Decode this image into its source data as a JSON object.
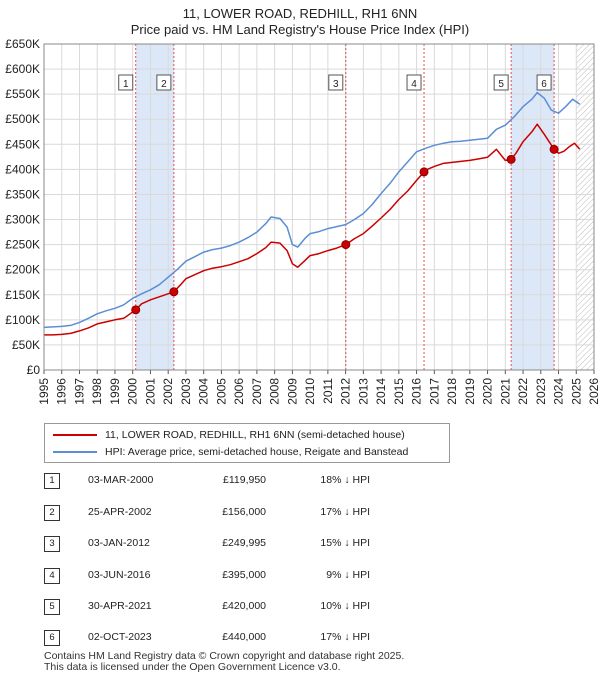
{
  "title_line1": "11, LOWER ROAD, REDHILL, RH1 6NN",
  "title_line2": "Price paid vs. HM Land Registry's House Price Index (HPI)",
  "colors": {
    "price_paid": "#cc0000",
    "hpi": "#5b8ed6",
    "band": "#dce8f8",
    "marker_border": "#555555",
    "grid": "#d9d9d9"
  },
  "legend": {
    "price_paid_label": "11, LOWER ROAD, REDHILL, RH1 6NN (semi-detached house)",
    "hpi_label": "HPI: Average price, semi-detached house, Reigate and Banstead"
  },
  "chart_data": {
    "type": "line",
    "xlim": [
      1995,
      2026
    ],
    "ylim": [
      0,
      650000
    ],
    "x_ticks": [
      "1995",
      "1996",
      "1997",
      "1998",
      "1999",
      "2000",
      "2001",
      "2002",
      "2003",
      "2004",
      "2005",
      "2006",
      "2007",
      "2008",
      "2009",
      "2010",
      "2011",
      "2012",
      "2013",
      "2014",
      "2015",
      "2016",
      "2017",
      "2018",
      "2019",
      "2020",
      "2021",
      "2022",
      "2023",
      "2024",
      "2025",
      "2026"
    ],
    "y_ticks": [
      {
        "value": 0,
        "label": "£0"
      },
      {
        "value": 50000,
        "label": "£50K"
      },
      {
        "value": 100000,
        "label": "£100K"
      },
      {
        "value": 150000,
        "label": "£150K"
      },
      {
        "value": 200000,
        "label": "£200K"
      },
      {
        "value": 250000,
        "label": "£250K"
      },
      {
        "value": 300000,
        "label": "£300K"
      },
      {
        "value": 350000,
        "label": "£350K"
      },
      {
        "value": 400000,
        "label": "£400K"
      },
      {
        "value": 450000,
        "label": "£450K"
      },
      {
        "value": 500000,
        "label": "£500K"
      },
      {
        "value": 550000,
        "label": "£550K"
      },
      {
        "value": 600000,
        "label": "£600K"
      },
      {
        "value": 650000,
        "label": "£650K"
      }
    ],
    "grid": true,
    "shaded_bands": [
      [
        2000.17,
        2002.32
      ],
      [
        2021.33,
        2023.75
      ]
    ],
    "projection_from": 2025.0,
    "series": [
      {
        "name": "11, LOWER ROAD, REDHILL, RH1 6NN (semi-detached house)",
        "color": "#cc0000",
        "x": [
          1995.0,
          1995.5,
          1996.0,
          1996.5,
          1997.0,
          1997.5,
          1998.0,
          1998.5,
          1999.0,
          1999.5,
          2000.17,
          2000.5,
          2001.0,
          2001.5,
          2002.32,
          2002.7,
          2003.0,
          2003.5,
          2004.0,
          2004.5,
          2005.0,
          2005.5,
          2006.0,
          2006.5,
          2007.0,
          2007.5,
          2007.8,
          2008.3,
          2008.7,
          2009.0,
          2009.3,
          2009.7,
          2010.0,
          2010.5,
          2011.0,
          2011.5,
          2012.01,
          2012.5,
          2013.0,
          2013.5,
          2014.0,
          2014.5,
          2015.0,
          2015.5,
          2016.0,
          2016.42,
          2016.6,
          2017.0,
          2017.5,
          2018.0,
          2018.5,
          2019.0,
          2019.5,
          2020.0,
          2020.5,
          2021.0,
          2021.33,
          2021.6,
          2022.0,
          2022.5,
          2022.8,
          2023.2,
          2023.75,
          2024.0,
          2024.3,
          2024.6,
          2024.9,
          2025.2
        ],
        "values": [
          70000,
          70000,
          71000,
          73000,
          78000,
          84000,
          92000,
          96000,
          100000,
          103000,
          119950,
          132000,
          140000,
          146000,
          156000,
          170000,
          182000,
          190000,
          198000,
          203000,
          206000,
          210000,
          216000,
          222000,
          232000,
          244000,
          255000,
          253000,
          238000,
          212000,
          205000,
          218000,
          228000,
          232000,
          238000,
          243000,
          249995,
          262000,
          272000,
          287000,
          303000,
          320000,
          340000,
          357000,
          378000,
          395000,
          400000,
          406000,
          412000,
          414000,
          416000,
          418000,
          421000,
          424000,
          440000,
          418000,
          420000,
          432000,
          455000,
          475000,
          490000,
          470000,
          440000,
          432000,
          436000,
          445000,
          452000,
          440000
        ]
      },
      {
        "name": "HPI: Average price, semi-detached house, Reigate and Banstead",
        "color": "#5b8ed6",
        "x": [
          1995.0,
          1995.5,
          1996.0,
          1996.5,
          1997.0,
          1997.5,
          1998.0,
          1998.5,
          1999.0,
          1999.5,
          2000.0,
          2000.5,
          2001.0,
          2001.5,
          2002.0,
          2002.5,
          2003.0,
          2003.5,
          2004.0,
          2004.5,
          2005.0,
          2005.5,
          2006.0,
          2006.5,
          2007.0,
          2007.5,
          2007.8,
          2008.3,
          2008.7,
          2009.0,
          2009.3,
          2009.7,
          2010.0,
          2010.5,
          2011.0,
          2011.5,
          2012.0,
          2012.5,
          2013.0,
          2013.5,
          2014.0,
          2014.5,
          2015.0,
          2015.5,
          2016.0,
          2016.5,
          2017.0,
          2017.5,
          2018.0,
          2018.5,
          2019.0,
          2019.5,
          2020.0,
          2020.5,
          2021.0,
          2021.5,
          2022.0,
          2022.5,
          2022.8,
          2023.2,
          2023.6,
          2024.0,
          2024.4,
          2024.8,
          2025.2
        ],
        "values": [
          85000,
          86000,
          87000,
          89000,
          95000,
          103000,
          112000,
          118000,
          123000,
          130000,
          143000,
          152000,
          160000,
          170000,
          185000,
          200000,
          217000,
          226000,
          235000,
          240000,
          243000,
          248000,
          255000,
          264000,
          275000,
          292000,
          305000,
          302000,
          285000,
          250000,
          245000,
          262000,
          272000,
          276000,
          282000,
          286000,
          290000,
          300000,
          312000,
          330000,
          352000,
          372000,
          395000,
          415000,
          435000,
          442000,
          448000,
          452000,
          455000,
          456000,
          458000,
          460000,
          462000,
          480000,
          488000,
          505000,
          525000,
          540000,
          553000,
          542000,
          518000,
          512000,
          525000,
          540000,
          530000
        ]
      }
    ],
    "sales": [
      {
        "label": "1",
        "x": 2000.17,
        "value": 119950
      },
      {
        "label": "2",
        "x": 2002.32,
        "value": 156000
      },
      {
        "label": "3",
        "x": 2012.01,
        "value": 249995
      },
      {
        "label": "4",
        "x": 2016.42,
        "value": 395000
      },
      {
        "label": "5",
        "x": 2021.33,
        "value": 420000
      },
      {
        "label": "6",
        "x": 2023.75,
        "value": 440000
      }
    ]
  },
  "transactions": [
    {
      "num": "1",
      "date": "03-MAR-2000",
      "price": "£119,950",
      "hpi": "18% ↓ HPI"
    },
    {
      "num": "2",
      "date": "25-APR-2002",
      "price": "£156,000",
      "hpi": "17% ↓ HPI"
    },
    {
      "num": "3",
      "date": "03-JAN-2012",
      "price": "£249,995",
      "hpi": "15% ↓ HPI"
    },
    {
      "num": "4",
      "date": "03-JUN-2016",
      "price": "£395,000",
      "hpi": "9% ↓ HPI"
    },
    {
      "num": "5",
      "date": "30-APR-2021",
      "price": "£420,000",
      "hpi": "10% ↓ HPI"
    },
    {
      "num": "6",
      "date": "02-OCT-2023",
      "price": "£440,000",
      "hpi": "17% ↓ HPI"
    }
  ],
  "footer": {
    "line1": "Contains HM Land Registry data © Crown copyright and database right 2025.",
    "line2": "This data is licensed under the Open Government Licence v3.0."
  }
}
